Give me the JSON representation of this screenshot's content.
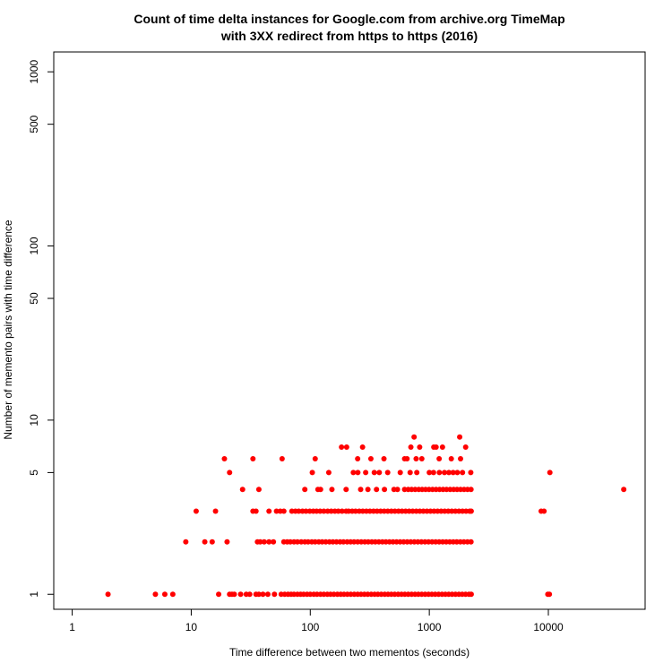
{
  "chart_data": {
    "type": "scatter",
    "title": "Count of time delta instances for Google.com from archive.org TimeMap",
    "subtitle": "with 3XX redirect from https to https (2016)",
    "xlabel": "Time difference between two mementos (seconds)",
    "ylabel": "Number of memento pairs with time difference",
    "x_scale": "log",
    "y_scale": "log",
    "xlim": [
      0.7,
      65000
    ],
    "ylim": [
      0.82,
      1300
    ],
    "x_ticks": [
      1,
      10,
      100,
      1000,
      10000
    ],
    "x_tick_labels": [
      "1",
      "10",
      "100",
      "1000",
      "10000"
    ],
    "y_ticks": [
      1,
      5,
      10,
      50,
      100,
      500,
      1000
    ],
    "y_tick_labels": [
      "1",
      "5",
      "10",
      "50",
      "100",
      "500",
      "1000"
    ],
    "grid": false,
    "legend": "none",
    "point_color": "#ff0000",
    "series": [
      {
        "points": [
          [
            2,
            1
          ],
          [
            5,
            1
          ],
          [
            6,
            1
          ],
          [
            7,
            1
          ],
          [
            17,
            1
          ],
          [
            21,
            1
          ],
          [
            22,
            1
          ],
          [
            23,
            1
          ],
          [
            26,
            1
          ],
          [
            29,
            1
          ],
          [
            31,
            1
          ],
          [
            35,
            1
          ],
          [
            37,
            1
          ],
          [
            40,
            1
          ],
          [
            44,
            1
          ],
          [
            50,
            1
          ],
          [
            57,
            1
          ],
          [
            61,
            1
          ],
          [
            65,
            1
          ],
          [
            69,
            1
          ],
          [
            73,
            1
          ],
          [
            78,
            1
          ],
          [
            83,
            1
          ],
          [
            88,
            1
          ],
          [
            94,
            1
          ],
          [
            100,
            1
          ],
          [
            107,
            1
          ],
          [
            114,
            1
          ],
          [
            122,
            1
          ],
          [
            130,
            1
          ],
          [
            139,
            1
          ],
          [
            148,
            1
          ],
          [
            158,
            1
          ],
          [
            169,
            1
          ],
          [
            180,
            1
          ],
          [
            192,
            1
          ],
          [
            205,
            1
          ],
          [
            219,
            1
          ],
          [
            234,
            1
          ],
          [
            250,
            1
          ],
          [
            267,
            1
          ],
          [
            285,
            1
          ],
          [
            304,
            1
          ],
          [
            325,
            1
          ],
          [
            347,
            1
          ],
          [
            370,
            1
          ],
          [
            395,
            1
          ],
          [
            422,
            1
          ],
          [
            450,
            1
          ],
          [
            480,
            1
          ],
          [
            512,
            1
          ],
          [
            547,
            1
          ],
          [
            584,
            1
          ],
          [
            623,
            1
          ],
          [
            665,
            1
          ],
          [
            710,
            1
          ],
          [
            758,
            1
          ],
          [
            809,
            1
          ],
          [
            864,
            1
          ],
          [
            922,
            1
          ],
          [
            984,
            1
          ],
          [
            1050,
            1
          ],
          [
            1121,
            1
          ],
          [
            1197,
            1
          ],
          [
            1278,
            1
          ],
          [
            1364,
            1
          ],
          [
            1456,
            1
          ],
          [
            1554,
            1
          ],
          [
            1659,
            1
          ],
          [
            1771,
            1
          ],
          [
            1891,
            1
          ],
          [
            2018,
            1
          ],
          [
            2154,
            1
          ],
          [
            2250,
            1
          ],
          [
            9900,
            1
          ],
          [
            10200,
            1
          ],
          [
            9,
            2
          ],
          [
            13,
            2
          ],
          [
            15,
            2
          ],
          [
            20,
            2
          ],
          [
            36,
            2
          ],
          [
            38,
            2
          ],
          [
            41,
            2
          ],
          [
            45,
            2
          ],
          [
            49,
            2
          ],
          [
            60,
            2
          ],
          [
            64,
            2
          ],
          [
            68,
            2
          ],
          [
            73,
            2
          ],
          [
            78,
            2
          ],
          [
            84,
            2
          ],
          [
            90,
            2
          ],
          [
            96,
            2
          ],
          [
            103,
            2
          ],
          [
            110,
            2
          ],
          [
            118,
            2
          ],
          [
            126,
            2
          ],
          [
            135,
            2
          ],
          [
            145,
            2
          ],
          [
            155,
            2
          ],
          [
            166,
            2
          ],
          [
            178,
            2
          ],
          [
            190,
            2
          ],
          [
            204,
            2
          ],
          [
            218,
            2
          ],
          [
            233,
            2
          ],
          [
            250,
            2
          ],
          [
            268,
            2
          ],
          [
            287,
            2
          ],
          [
            307,
            2
          ],
          [
            329,
            2
          ],
          [
            352,
            2
          ],
          [
            377,
            2
          ],
          [
            404,
            2
          ],
          [
            432,
            2
          ],
          [
            463,
            2
          ],
          [
            496,
            2
          ],
          [
            531,
            2
          ],
          [
            569,
            2
          ],
          [
            609,
            2
          ],
          [
            652,
            2
          ],
          [
            698,
            2
          ],
          [
            748,
            2
          ],
          [
            801,
            2
          ],
          [
            858,
            2
          ],
          [
            919,
            2
          ],
          [
            984,
            2
          ],
          [
            1054,
            2
          ],
          [
            1129,
            2
          ],
          [
            1209,
            2
          ],
          [
            1295,
            2
          ],
          [
            1387,
            2
          ],
          [
            1485,
            2
          ],
          [
            1591,
            2
          ],
          [
            1704,
            2
          ],
          [
            1825,
            2
          ],
          [
            1954,
            2
          ],
          [
            2093,
            2
          ],
          [
            2240,
            2
          ],
          [
            11,
            3
          ],
          [
            16,
            3
          ],
          [
            33,
            3
          ],
          [
            35,
            3
          ],
          [
            45,
            3
          ],
          [
            52,
            3
          ],
          [
            56,
            3
          ],
          [
            60,
            3
          ],
          [
            70,
            3
          ],
          [
            75,
            3
          ],
          [
            80,
            3
          ],
          [
            86,
            3
          ],
          [
            92,
            3
          ],
          [
            99,
            3
          ],
          [
            106,
            3
          ],
          [
            113,
            3
          ],
          [
            121,
            3
          ],
          [
            130,
            3
          ],
          [
            140,
            3
          ],
          [
            150,
            3
          ],
          [
            161,
            3
          ],
          [
            172,
            3
          ],
          [
            185,
            3
          ],
          [
            200,
            3
          ],
          [
            210,
            3
          ],
          [
            225,
            3
          ],
          [
            240,
            3
          ],
          [
            258,
            3
          ],
          [
            276,
            3
          ],
          [
            296,
            3
          ],
          [
            317,
            3
          ],
          [
            340,
            3
          ],
          [
            364,
            3
          ],
          [
            390,
            3
          ],
          [
            418,
            3
          ],
          [
            448,
            3
          ],
          [
            480,
            3
          ],
          [
            514,
            3
          ],
          [
            551,
            3
          ],
          [
            590,
            3
          ],
          [
            632,
            3
          ],
          [
            677,
            3
          ],
          [
            725,
            3
          ],
          [
            777,
            3
          ],
          [
            832,
            3
          ],
          [
            891,
            3
          ],
          [
            955,
            3
          ],
          [
            1023,
            3
          ],
          [
            1096,
            3
          ],
          [
            1174,
            3
          ],
          [
            1257,
            3
          ],
          [
            1347,
            3
          ],
          [
            1443,
            3
          ],
          [
            1545,
            3
          ],
          [
            1656,
            3
          ],
          [
            1774,
            3
          ],
          [
            1900,
            3
          ],
          [
            2035,
            3
          ],
          [
            2180,
            3
          ],
          [
            2250,
            3
          ],
          [
            8700,
            3
          ],
          [
            9200,
            3
          ],
          [
            27,
            4
          ],
          [
            37,
            4
          ],
          [
            90,
            4
          ],
          [
            116,
            4
          ],
          [
            122,
            4
          ],
          [
            152,
            4
          ],
          [
            200,
            4
          ],
          [
            265,
            4
          ],
          [
            305,
            4
          ],
          [
            360,
            4
          ],
          [
            420,
            4
          ],
          [
            505,
            4
          ],
          [
            540,
            4
          ],
          [
            620,
            4
          ],
          [
            665,
            4
          ],
          [
            710,
            4
          ],
          [
            760,
            4
          ],
          [
            815,
            4
          ],
          [
            870,
            4
          ],
          [
            930,
            4
          ],
          [
            995,
            4
          ],
          [
            1065,
            4
          ],
          [
            1140,
            4
          ],
          [
            1220,
            4
          ],
          [
            1305,
            4
          ],
          [
            1395,
            4
          ],
          [
            1495,
            4
          ],
          [
            1600,
            4
          ],
          [
            1710,
            4
          ],
          [
            1830,
            4
          ],
          [
            1960,
            4
          ],
          [
            2095,
            4
          ],
          [
            2240,
            4
          ],
          [
            43000,
            4
          ],
          [
            21,
            5
          ],
          [
            104,
            5
          ],
          [
            143,
            5
          ],
          [
            230,
            5
          ],
          [
            251,
            5
          ],
          [
            292,
            5
          ],
          [
            345,
            5
          ],
          [
            380,
            5
          ],
          [
            447,
            5
          ],
          [
            570,
            5
          ],
          [
            690,
            5
          ],
          [
            785,
            5
          ],
          [
            1000,
            5
          ],
          [
            1085,
            5
          ],
          [
            1215,
            5
          ],
          [
            1340,
            5
          ],
          [
            1460,
            5
          ],
          [
            1585,
            5
          ],
          [
            1720,
            5
          ],
          [
            1900,
            5
          ],
          [
            2230,
            5
          ],
          [
            10300,
            5
          ],
          [
            19,
            6
          ],
          [
            33,
            6
          ],
          [
            58,
            6
          ],
          [
            110,
            6
          ],
          [
            250,
            6
          ],
          [
            323,
            6
          ],
          [
            416,
            6
          ],
          [
            620,
            6
          ],
          [
            650,
            6
          ],
          [
            775,
            6
          ],
          [
            865,
            6
          ],
          [
            1210,
            6
          ],
          [
            1530,
            6
          ],
          [
            1830,
            6
          ],
          [
            183,
            7
          ],
          [
            202,
            7
          ],
          [
            275,
            7
          ],
          [
            700,
            7
          ],
          [
            830,
            7
          ],
          [
            1090,
            7
          ],
          [
            1140,
            7
          ],
          [
            1290,
            7
          ],
          [
            2020,
            7
          ],
          [
            745,
            8
          ],
          [
            1800,
            8
          ]
        ]
      }
    ]
  }
}
